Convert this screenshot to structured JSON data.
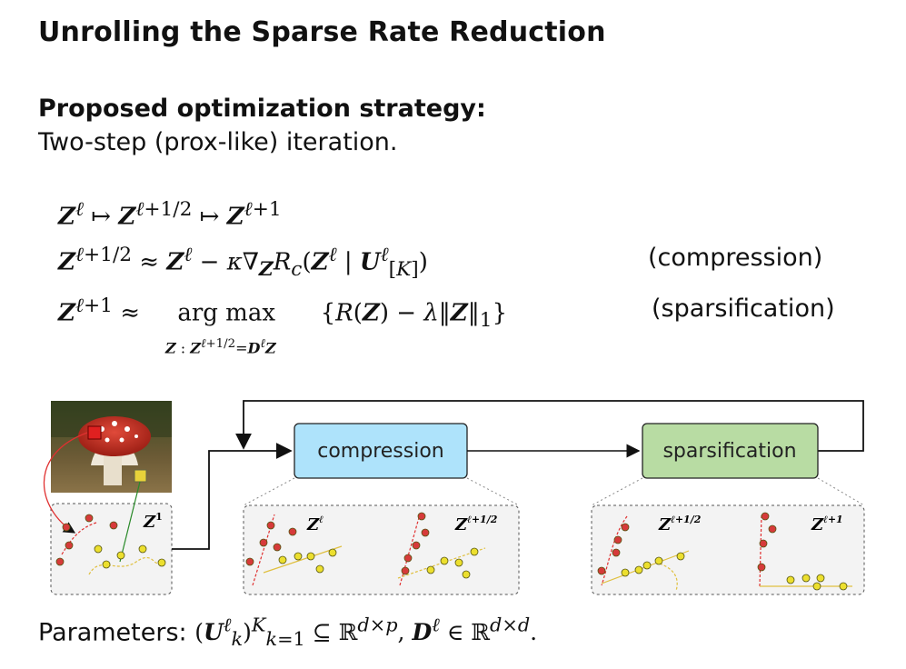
{
  "title": "Unrolling the Sparse Rate Reduction",
  "strategy_heading": "Proposed optimization strategy:",
  "strategy_text": "Two-step (prox-like) iteration.",
  "equations": {
    "line1": "Zℓ ↦ Zℓ+1/2 ↦ Zℓ+1",
    "line2": "Zℓ+1/2 ≈ Zℓ − κ∇Z Rc(Zℓ | Uℓ[K])",
    "line2_tag": "(compression)",
    "line3": "Zℓ+1 ≈ arg max {R(Z) − λ‖Z‖1}",
    "line3_sub": "Z : Zℓ+1/2 = Dℓ Z",
    "line3_tag": "(sparsification)"
  },
  "diagram": {
    "box_compression": "compression",
    "box_sparsification": "sparsification",
    "panel_input_label": "Z1",
    "panel_comp_left": "Zℓ",
    "panel_comp_right": "Zℓ+1/2",
    "panel_sparse_left": "Zℓ+1/2",
    "panel_sparse_right": "Zℓ+1",
    "colors": {
      "compression_fill": "#aee3fb",
      "sparsification_fill": "#b8dca3",
      "red_point": "#d63a3a",
      "yellow_point": "#e9dc2a"
    }
  },
  "parameters": "Parameters: (Uℓk)Kk=1 ⊆ ℝd×p, Dℓ ∈ ℝd×d."
}
